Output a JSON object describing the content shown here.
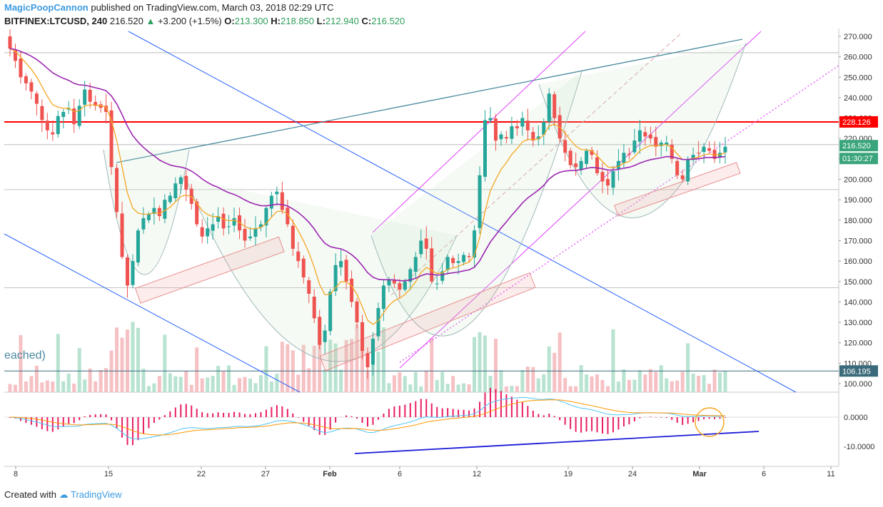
{
  "header": {
    "author": "MagicPoopCannon",
    "published_text": "published on TradingView.com, March 03, 2018 02:29 UTC",
    "symbol": "BITFINEX:LTCUSD, 240",
    "last": "216.520",
    "change_icon": "up-triangle-icon",
    "change": "+3.200 (+1.5%)",
    "o_label": "O:",
    "o_value": "213.300",
    "h_label": "H:",
    "h_value": "218.850",
    "l_label": "L:",
    "l_value": "212.940",
    "c_label": "C:",
    "c_value": "216.520"
  },
  "footer": {
    "created_with": "Created with",
    "logo_icon": "tradingview-cloud-icon",
    "brand": "TradingView"
  },
  "colors": {
    "up": "#26a69a",
    "down": "#ef5350",
    "resistance": "#ff0000",
    "ema_fast": "#f5a623",
    "ema_slow": "#9c27b0",
    "trend_blue": "#2962ff",
    "channel_magenta": "#e040fb",
    "wedge_teal": "#4a8aa0",
    "macd_hist": "#e91e63"
  },
  "chart_data": {
    "type": "candlestick",
    "y_axis": {
      "ticks": [
        "270.000",
        "260.000",
        "250.000",
        "240.000",
        "230.000",
        "220.000",
        "210.000",
        "200.000",
        "190.000",
        "180.000",
        "170.000",
        "160.000",
        "150.000",
        "140.000",
        "130.000",
        "120.000",
        "110.000",
        "100.000"
      ],
      "min": 95,
      "max": 272
    },
    "x_axis": {
      "ticks": [
        "8",
        "15",
        "22",
        "27",
        "Feb",
        "6",
        "12",
        "19",
        "24",
        "Mar",
        "6",
        "11"
      ]
    },
    "price_labels": {
      "resistance": "228.126",
      "last": "216.520",
      "countdown": "01:30:27",
      "support": "106.195"
    },
    "annotation_text": "eached)",
    "macd_ticks": [
      "0.0000",
      "-10.0000"
    ],
    "closes": [
      264,
      258,
      250,
      247,
      243,
      237,
      229,
      224,
      222,
      231,
      233,
      235,
      227,
      236,
      244,
      238,
      236,
      235,
      233,
      206,
      184,
      162,
      148,
      160,
      175,
      181,
      183,
      186,
      182,
      190,
      192,
      198,
      201,
      195,
      188,
      178,
      172,
      176,
      178,
      182,
      176,
      177,
      181,
      175,
      170,
      172,
      176,
      178,
      186,
      192,
      194,
      185,
      178,
      166,
      160,
      152,
      144,
      132,
      119,
      126,
      145,
      158,
      160,
      150,
      140,
      130,
      116,
      108,
      122,
      137,
      148,
      151,
      149,
      146,
      150,
      156,
      162,
      170,
      166,
      150,
      149,
      155,
      162,
      159,
      160,
      163,
      162,
      175,
      202,
      229,
      230,
      219,
      222,
      220,
      226,
      225,
      230,
      224,
      219,
      221,
      228,
      242,
      230,
      220,
      213,
      207,
      206,
      209,
      214,
      212,
      203,
      199,
      197,
      204,
      209,
      213,
      212,
      219,
      224,
      221,
      220,
      216,
      218,
      218,
      210,
      202,
      200,
      210,
      212,
      213,
      216,
      214,
      210,
      213,
      216
    ],
    "resistance_value": 228.126,
    "support_value": 106.195
  }
}
